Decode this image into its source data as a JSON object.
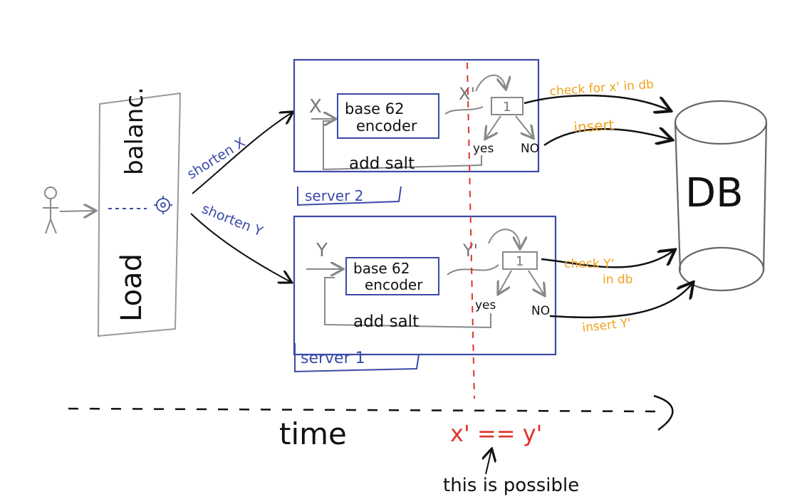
{
  "load_balancer": {
    "label_bottom": "Load",
    "label_top": "balanc."
  },
  "servers": [
    {
      "name": "server 2",
      "input": "X",
      "encoder_line1": "base 62",
      "encoder_line2": "encoder",
      "output": "X'",
      "check_box": "1",
      "yes": "yes",
      "no": "NO",
      "salt": "add salt"
    },
    {
      "name": "server 1",
      "input": "Y",
      "encoder_line1": "base 62",
      "encoder_line2": "encoder",
      "output": "Y'",
      "check_box": "1",
      "yes": "yes",
      "no": "NO",
      "salt": "add salt"
    }
  ],
  "requests": {
    "top": "shorten X",
    "bottom": "shorten Y"
  },
  "db_ops": {
    "check_x": "check for x' in db",
    "insert_top": "insert",
    "check_y_line1": "check Y'",
    "check_y_line2": "in db",
    "insert_y": "insert Y'"
  },
  "database": {
    "label": "DB"
  },
  "timeline": {
    "label": "time",
    "equality": "x' == y'"
  },
  "note": "this is possible",
  "colors": {
    "ink": "#111111",
    "blue": "#3b4aa8",
    "orange": "#f0a21a",
    "red": "#e0332b",
    "gray": "#777777"
  }
}
